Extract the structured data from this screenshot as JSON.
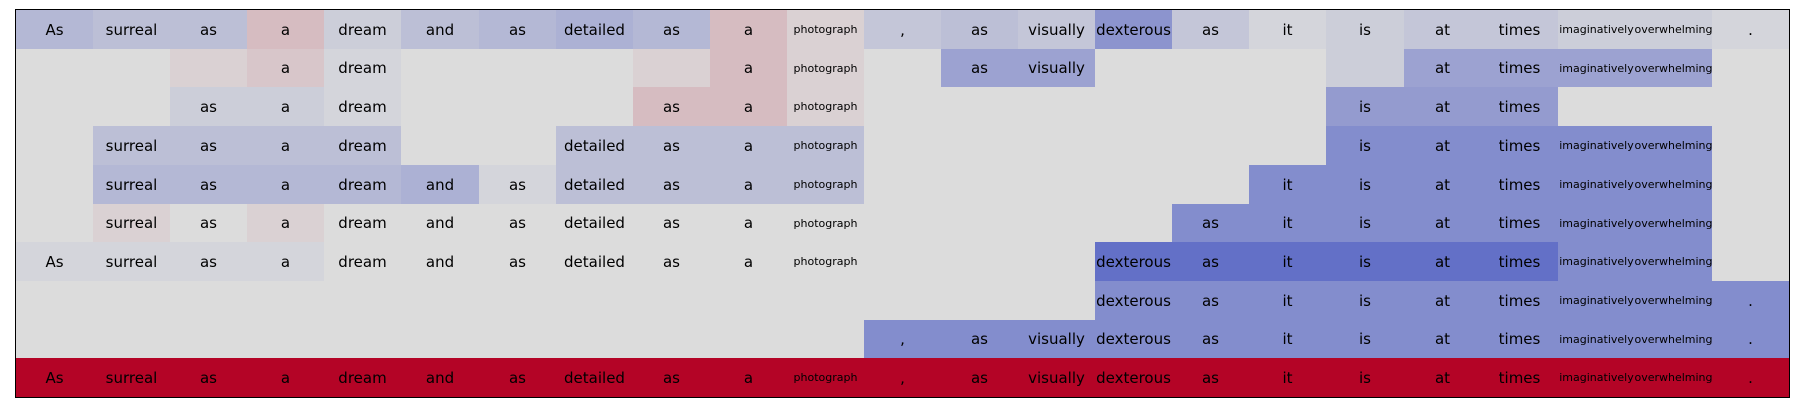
{
  "chart_data": {
    "type": "heatmap",
    "tokens": [
      "As",
      "surreal",
      "as",
      "a",
      "dream",
      "and",
      "as",
      "detailed",
      "as",
      "a",
      "photograph",
      ",",
      "as",
      "visually",
      "dexterous",
      "as",
      "it",
      "is",
      "at",
      "times",
      "imaginatively",
      "overwhelming",
      "."
    ],
    "small_tokens": [
      "photograph",
      "imaginatively",
      "overwhelming"
    ],
    "rows": [
      {
        "label": "row-1",
        "shown": [
          1,
          1,
          1,
          1,
          1,
          1,
          1,
          1,
          1,
          1,
          1,
          1,
          1,
          1,
          1,
          1,
          1,
          1,
          1,
          1,
          1,
          1,
          1
        ],
        "values": [
          -0.25,
          -0.2,
          -0.2,
          0.15,
          -0.1,
          -0.2,
          -0.25,
          -0.3,
          -0.25,
          0.15,
          0.05,
          -0.15,
          -0.2,
          -0.15,
          -0.5,
          -0.15,
          -0.05,
          -0.1,
          -0.15,
          -0.15,
          -0.1,
          -0.1,
          -0.05
        ]
      },
      {
        "label": "row-2",
        "shown": [
          0,
          0,
          0,
          1,
          1,
          0,
          0,
          0,
          0,
          1,
          1,
          0,
          1,
          1,
          0,
          0,
          0,
          0,
          1,
          1,
          1,
          1,
          0
        ],
        "values": [
          0,
          0,
          0.05,
          0.1,
          -0.05,
          0,
          0,
          0,
          0.05,
          0.15,
          0.05,
          0,
          -0.4,
          -0.4,
          0,
          0,
          0,
          -0.1,
          -0.4,
          -0.4,
          -0.4,
          -0.4,
          0
        ]
      },
      {
        "label": "row-3",
        "shown": [
          0,
          0,
          1,
          1,
          1,
          0,
          0,
          0,
          1,
          1,
          1,
          0,
          0,
          0,
          0,
          0,
          0,
          1,
          1,
          1,
          0,
          0,
          0
        ],
        "values": [
          0,
          0,
          -0.1,
          -0.1,
          -0.05,
          0,
          0,
          0,
          0.15,
          0.15,
          0.05,
          0,
          0,
          0,
          0,
          0,
          0,
          -0.45,
          -0.45,
          -0.45,
          0,
          0,
          0
        ]
      },
      {
        "label": "row-4",
        "shown": [
          0,
          1,
          1,
          1,
          1,
          0,
          0,
          1,
          1,
          1,
          1,
          0,
          0,
          0,
          0,
          0,
          0,
          1,
          1,
          1,
          1,
          1,
          0
        ],
        "values": [
          0,
          -0.2,
          -0.2,
          -0.2,
          -0.2,
          0,
          0,
          -0.2,
          -0.2,
          -0.2,
          -0.2,
          0,
          0,
          0,
          0,
          0,
          0,
          -0.55,
          -0.55,
          -0.55,
          -0.55,
          -0.55,
          0
        ]
      },
      {
        "label": "row-5",
        "shown": [
          0,
          1,
          1,
          1,
          1,
          1,
          1,
          1,
          1,
          1,
          1,
          0,
          0,
          0,
          0,
          0,
          1,
          1,
          1,
          1,
          1,
          1,
          0
        ],
        "values": [
          0,
          -0.25,
          -0.25,
          -0.25,
          -0.25,
          -0.3,
          -0.05,
          -0.2,
          -0.2,
          -0.2,
          -0.2,
          0,
          0,
          0,
          0,
          0,
          -0.55,
          -0.55,
          -0.55,
          -0.55,
          -0.55,
          -0.55,
          0
        ]
      },
      {
        "label": "row-6",
        "shown": [
          0,
          1,
          1,
          1,
          1,
          1,
          1,
          1,
          1,
          1,
          1,
          0,
          0,
          0,
          0,
          1,
          1,
          1,
          1,
          1,
          1,
          1,
          0
        ],
        "values": [
          0,
          0.05,
          0,
          0.05,
          0,
          0,
          0,
          0,
          0,
          0,
          0,
          0,
          0,
          0,
          0,
          -0.55,
          -0.55,
          -0.55,
          -0.55,
          -0.55,
          -0.55,
          -0.55,
          0
        ]
      },
      {
        "label": "row-7",
        "shown": [
          1,
          1,
          1,
          1,
          1,
          1,
          1,
          1,
          1,
          1,
          1,
          0,
          0,
          0,
          1,
          1,
          1,
          1,
          1,
          1,
          1,
          1,
          0
        ],
        "values": [
          -0.05,
          -0.05,
          -0.05,
          -0.05,
          0,
          0,
          0,
          0,
          0,
          0,
          0,
          0,
          0,
          0,
          -0.75,
          -0.75,
          -0.75,
          -0.75,
          -0.75,
          -0.75,
          -0.55,
          -0.55,
          0
        ]
      },
      {
        "label": "row-8",
        "shown": [
          0,
          0,
          0,
          0,
          0,
          0,
          0,
          0,
          0,
          0,
          0,
          0,
          0,
          0,
          1,
          1,
          1,
          1,
          1,
          1,
          1,
          1,
          1
        ],
        "values": [
          0,
          0,
          0,
          0,
          0,
          0,
          0,
          0,
          0,
          0,
          0,
          0,
          0,
          0,
          -0.55,
          -0.55,
          -0.55,
          -0.55,
          -0.55,
          -0.55,
          -0.55,
          -0.55,
          -0.55
        ]
      },
      {
        "label": "row-9",
        "shown": [
          0,
          0,
          0,
          0,
          0,
          0,
          0,
          0,
          0,
          0,
          0,
          1,
          1,
          1,
          1,
          1,
          1,
          1,
          1,
          1,
          1,
          1,
          1
        ],
        "values": [
          0,
          0,
          0,
          0,
          0,
          0,
          0,
          0,
          0,
          0,
          0,
          -0.55,
          -0.55,
          -0.55,
          -0.55,
          -0.55,
          -0.55,
          -0.55,
          -0.55,
          -0.55,
          -0.55,
          -0.55,
          -0.55
        ]
      },
      {
        "label": "row-10",
        "shown": [
          1,
          1,
          1,
          1,
          1,
          1,
          1,
          1,
          1,
          1,
          1,
          1,
          1,
          1,
          1,
          1,
          1,
          1,
          1,
          1,
          1,
          1,
          1
        ],
        "values": [
          1,
          1,
          1,
          1,
          1,
          1,
          1,
          1,
          1,
          1,
          1,
          1,
          1,
          1,
          1,
          1,
          1,
          1,
          1,
          1,
          1,
          1,
          1
        ]
      }
    ],
    "colormap": "coolwarm",
    "vmin": -1,
    "vmax": 1,
    "colors": {
      "neutral": "#dcdcdc",
      "cold": "#3b4cc0",
      "hot": "#b40426"
    }
  }
}
